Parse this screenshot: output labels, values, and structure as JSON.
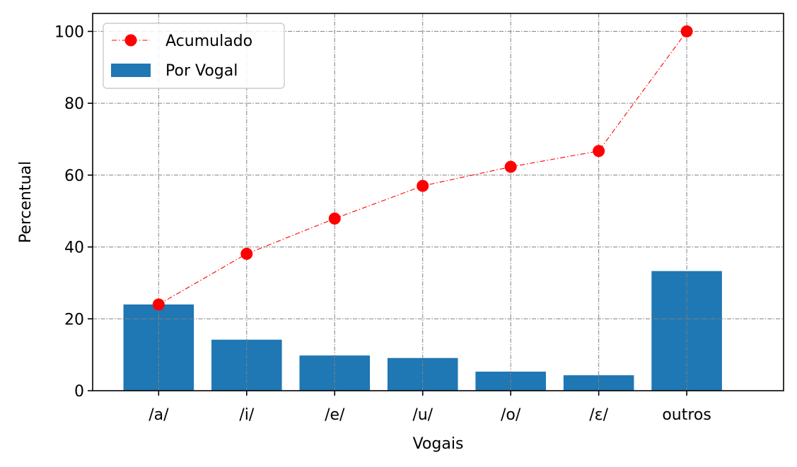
{
  "chart_data": {
    "type": "bar",
    "categories": [
      "/a/",
      "/i/",
      "/e/",
      "/u/",
      "/o/",
      "/ε/",
      "outros"
    ],
    "series": [
      {
        "name": "Por Vogal",
        "type": "bar",
        "color": "#1f77b4",
        "values": [
          24.0,
          14.2,
          9.8,
          9.1,
          5.3,
          4.3,
          33.3
        ]
      },
      {
        "name": "Acumulado",
        "type": "line",
        "color": "#ff0000",
        "line_style": "dash-dot",
        "marker": "circle",
        "values": [
          24.0,
          38.1,
          47.9,
          57.0,
          62.3,
          66.7,
          100.0
        ]
      }
    ],
    "xlabel": "Vogais",
    "ylabel": "Percentual",
    "ylim": [
      0,
      105
    ],
    "yticks": [
      0,
      20,
      40,
      60,
      80,
      100
    ],
    "grid": true,
    "legend_position": "top-left"
  }
}
